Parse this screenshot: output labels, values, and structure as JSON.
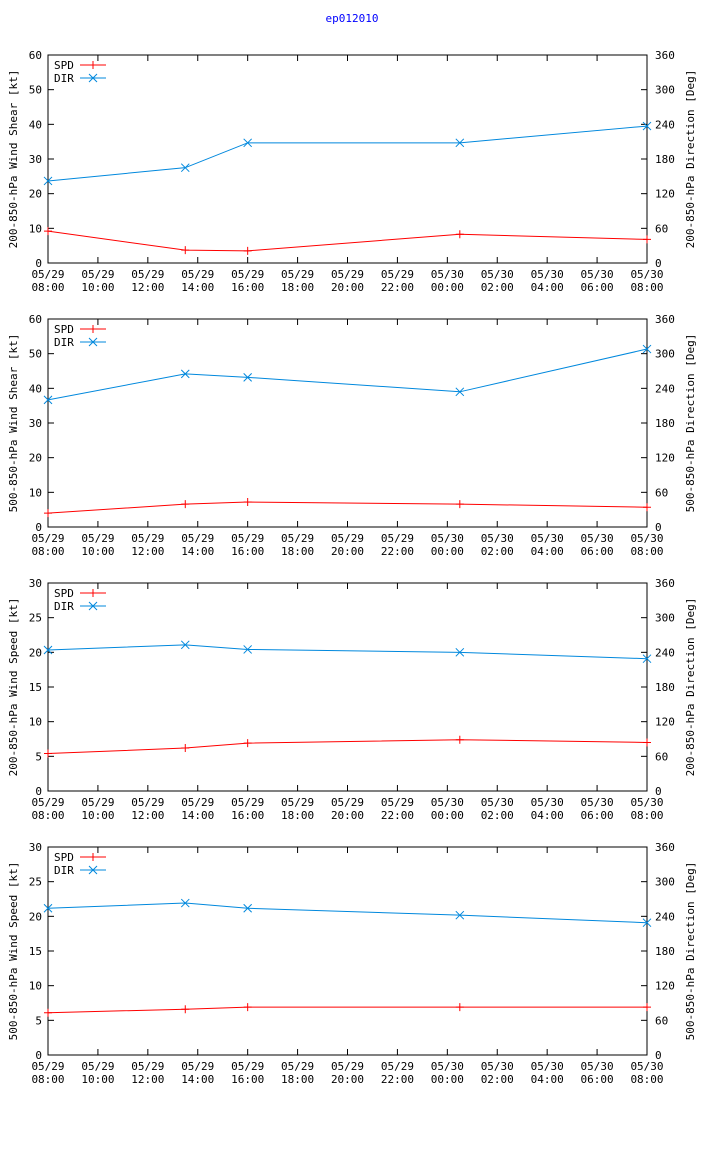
{
  "title": "ep012010",
  "colors": {
    "spd": "#ff0000",
    "dir": "#0088dd",
    "axis": "#000000"
  },
  "x_ticks": [
    [
      "05/29",
      "08:00"
    ],
    [
      "05/29",
      "10:00"
    ],
    [
      "05/29",
      "12:00"
    ],
    [
      "05/29",
      "14:00"
    ],
    [
      "05/29",
      "16:00"
    ],
    [
      "05/29",
      "18:00"
    ],
    [
      "05/29",
      "20:00"
    ],
    [
      "05/29",
      "22:00"
    ],
    [
      "05/30",
      "00:00"
    ],
    [
      "05/30",
      "02:00"
    ],
    [
      "05/30",
      "04:00"
    ],
    [
      "05/30",
      "06:00"
    ],
    [
      "05/30",
      "08:00"
    ]
  ],
  "chart_data": [
    {
      "type": "line",
      "ylabel": "200-850-hPa Wind Shear [kt]",
      "y2label": "200-850-hPa Direction [Deg]",
      "ylim": [
        0,
        60
      ],
      "yticks": [
        0,
        10,
        20,
        30,
        40,
        50,
        60
      ],
      "y2lim": [
        0,
        360
      ],
      "y2ticks": [
        0,
        60,
        120,
        180,
        240,
        300,
        360
      ],
      "xlim_hours": [
        0,
        24
      ],
      "series": [
        {
          "name": "SPD",
          "axis": "left",
          "x": [
            0,
            5.5,
            8,
            16.5,
            24
          ],
          "values": [
            9.2,
            3.7,
            3.5,
            8.3,
            6.8
          ]
        },
        {
          "name": "DIR",
          "axis": "right",
          "x": [
            0,
            5.5,
            8,
            16.5,
            24
          ],
          "values": [
            142,
            165,
            208,
            208,
            237
          ]
        }
      ]
    },
    {
      "type": "line",
      "ylabel": "500-850-hPa Wind Shear [kt]",
      "y2label": "500-850-hPa Direction [Deg]",
      "ylim": [
        0,
        60
      ],
      "yticks": [
        0,
        10,
        20,
        30,
        40,
        50,
        60
      ],
      "y2lim": [
        0,
        360
      ],
      "y2ticks": [
        0,
        60,
        120,
        180,
        240,
        300,
        360
      ],
      "xlim_hours": [
        0,
        24
      ],
      "series": [
        {
          "name": "SPD",
          "axis": "left",
          "x": [
            0,
            5.5,
            8,
            16.5,
            24
          ],
          "values": [
            4.0,
            6.6,
            7.2,
            6.6,
            5.7
          ]
        },
        {
          "name": "DIR",
          "axis": "right",
          "x": [
            0,
            5.5,
            8,
            16.5,
            24
          ],
          "values": [
            220,
            265,
            259,
            234,
            308
          ]
        }
      ]
    },
    {
      "type": "line",
      "ylabel": "200-850-hPa Wind Speed [kt]",
      "y2label": "200-850-hPa Direction [Deg]",
      "ylim": [
        0,
        30
      ],
      "yticks": [
        0,
        5,
        10,
        15,
        20,
        25,
        30
      ],
      "y2lim": [
        0,
        360
      ],
      "y2ticks": [
        0,
        60,
        120,
        180,
        240,
        300,
        360
      ],
      "xlim_hours": [
        0,
        24
      ],
      "series": [
        {
          "name": "SPD",
          "axis": "left",
          "x": [
            0,
            5.5,
            8,
            16.5,
            24
          ],
          "values": [
            5.4,
            6.2,
            6.9,
            7.4,
            7.0
          ]
        },
        {
          "name": "DIR",
          "axis": "right",
          "x": [
            0,
            5.5,
            8,
            16.5,
            24
          ],
          "values": [
            244,
            253,
            245,
            240,
            229
          ]
        }
      ]
    },
    {
      "type": "line",
      "ylabel": "500-850-hPa Wind Speed [kt]",
      "y2label": "500-850-hPa Direction [Deg]",
      "ylim": [
        0,
        30
      ],
      "yticks": [
        0,
        5,
        10,
        15,
        20,
        25,
        30
      ],
      "y2lim": [
        0,
        360
      ],
      "y2ticks": [
        0,
        60,
        120,
        180,
        240,
        300,
        360
      ],
      "xlim_hours": [
        0,
        24
      ],
      "series": [
        {
          "name": "SPD",
          "axis": "left",
          "x": [
            0,
            5.5,
            8,
            16.5,
            24
          ],
          "values": [
            6.1,
            6.6,
            6.9,
            6.9,
            6.9
          ]
        },
        {
          "name": "DIR",
          "axis": "right",
          "x": [
            0,
            5.5,
            8,
            16.5,
            24
          ],
          "values": [
            254,
            263,
            254,
            242,
            229
          ]
        }
      ]
    }
  ]
}
